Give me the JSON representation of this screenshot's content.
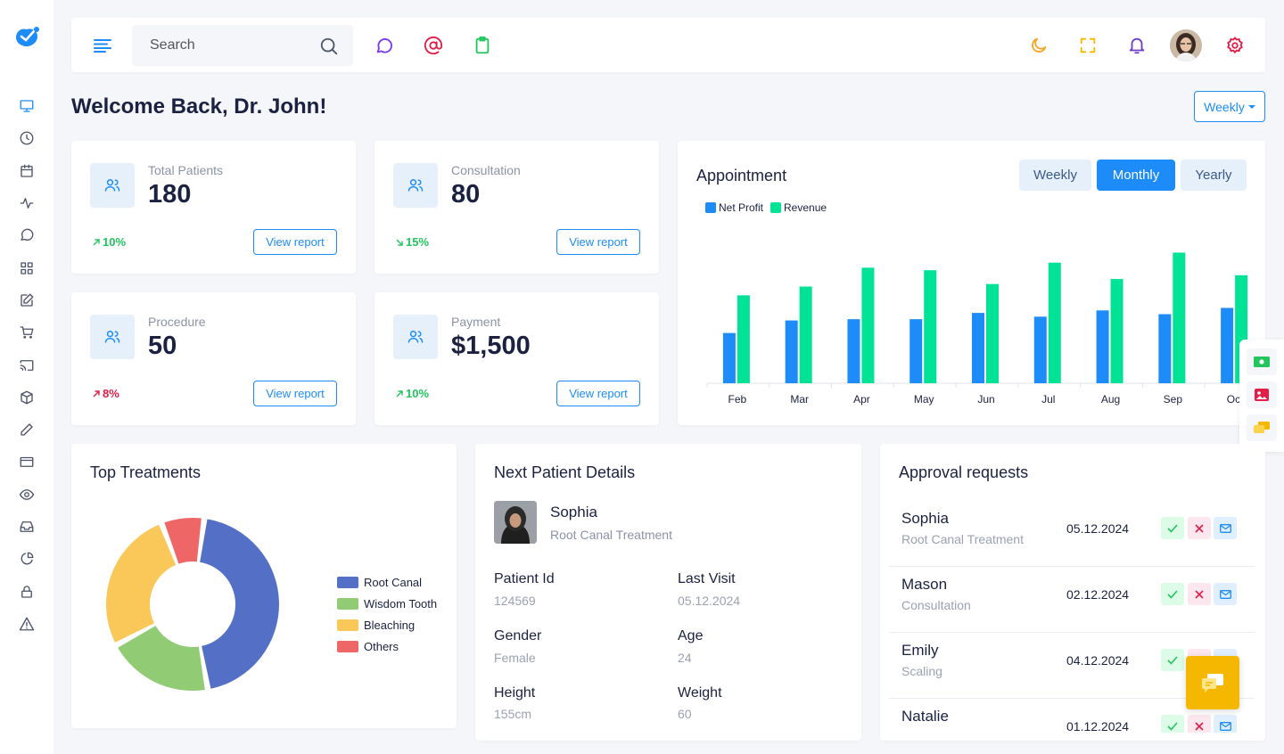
{
  "header": {
    "search_placeholder": "Search"
  },
  "welcome": "Welcome Back, Dr. John!",
  "period_dropdown": "Weekly",
  "stats": [
    {
      "label": "Total Patients",
      "value": "180",
      "delta": "10%",
      "direction": "up",
      "button": "View report"
    },
    {
      "label": "Consultation",
      "value": "80",
      "delta": "15%",
      "direction": "down-right-green",
      "button": "View report"
    },
    {
      "label": "Procedure",
      "value": "50",
      "delta": "8%",
      "direction": "up-red",
      "button": "View report"
    },
    {
      "label": "Payment",
      "value": "$1,500",
      "delta": "10%",
      "direction": "up",
      "button": "View report"
    }
  ],
  "appointment": {
    "title": "Appointment",
    "tabs": [
      {
        "label": "Weekly",
        "active": false
      },
      {
        "label": "Monthly",
        "active": true
      },
      {
        "label": "Yearly",
        "active": false
      }
    ]
  },
  "chart_data": {
    "type": "bar",
    "categories": [
      "Feb",
      "Mar",
      "Apr",
      "May",
      "Jun",
      "Jul",
      "Aug",
      "Sep",
      "Oct"
    ],
    "series": [
      {
        "name": "Net Profit",
        "color": "#1d8cf8",
        "values": [
          40,
          50,
          51,
          51,
          56,
          53,
          58,
          55,
          60
        ]
      },
      {
        "name": "Revenue",
        "color": "#00e396",
        "values": [
          70,
          77,
          92,
          90,
          79,
          96,
          83,
          104,
          86
        ]
      }
    ],
    "ylim": [
      0,
      110
    ],
    "legend": "top-left",
    "grid": false
  },
  "top_treatments": {
    "title": "Top Treatments",
    "chart_data": {
      "type": "pie",
      "labels": [
        "Root Canal",
        "Wisdom Tooth",
        "Bleaching",
        "Others"
      ],
      "values": [
        45,
        20,
        27,
        8
      ],
      "colors": [
        "#5470c6",
        "#91cc75",
        "#fac858",
        "#ee6666"
      ]
    }
  },
  "next_patient": {
    "title": "Next Patient Details",
    "name": "Sophia",
    "treatment": "Root Canal Treatment",
    "fields": [
      {
        "label": "Patient Id",
        "value": "124569"
      },
      {
        "label": "Last Visit",
        "value": "05.12.2024"
      },
      {
        "label": "Gender",
        "value": "Female"
      },
      {
        "label": "Age",
        "value": "24"
      },
      {
        "label": "Height",
        "value": "155cm"
      },
      {
        "label": "Weight",
        "value": "60"
      }
    ]
  },
  "approvals": {
    "title": "Approval requests",
    "rows": [
      {
        "name": "Sophia",
        "sub": "Root Canal Treatment",
        "date": "05.12.2024"
      },
      {
        "name": "Mason",
        "sub": "Consultation",
        "date": "02.12.2024"
      },
      {
        "name": "Emily",
        "sub": "Scaling",
        "date": "04.12.2024"
      },
      {
        "name": "Natalie",
        "sub": "",
        "date": "01.12.2024"
      }
    ]
  },
  "colors": {
    "primary": "#1d8cf8",
    "success": "#22c55e",
    "danger": "#e11d48",
    "warning": "#f5b700"
  },
  "icons": {
    "sidebar": [
      "monitor-icon",
      "clock-icon",
      "calendar-icon",
      "activity-icon",
      "chat-icon",
      "grid-icon",
      "edit-icon",
      "cart-icon",
      "cast-icon",
      "box-icon",
      "pencil-icon",
      "credit-card-icon",
      "eye-icon",
      "inbox-icon",
      "pie-chart-icon",
      "lock-icon",
      "alert-icon"
    ]
  }
}
